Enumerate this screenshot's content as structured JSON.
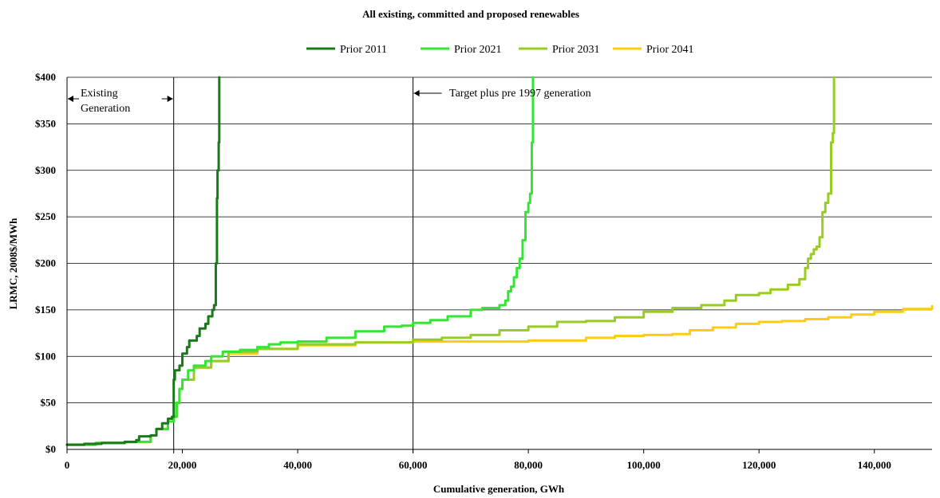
{
  "chart_data": {
    "type": "line",
    "title": "All existing, committed and proposed renewables",
    "xlabel": "Cumulative generation, GWh",
    "ylabel": "LRMC, 2008$/MWh",
    "xlim": [
      0,
      150000
    ],
    "ylim": [
      0,
      400
    ],
    "x_ticks": [
      0,
      20000,
      40000,
      60000,
      80000,
      100000,
      120000,
      140000
    ],
    "x_tick_labels": [
      "0",
      "20,000",
      "40,000",
      "60,000",
      "80,000",
      "100,000",
      "120,000",
      "140,000"
    ],
    "y_ticks": [
      0,
      50,
      100,
      150,
      200,
      250,
      300,
      350,
      400
    ],
    "y_tick_labels": [
      "$0",
      "$50",
      "$100",
      "$150",
      "$200",
      "$250",
      "$300",
      "$350",
      "$400"
    ],
    "grid": "horizontal",
    "legend_position": "top-center",
    "series": [
      {
        "name": "Prior 2011",
        "color": "#1a7a1a",
        "x": [
          0,
          3000,
          6000,
          10000,
          12000,
          12500,
          14500,
          15500,
          16500,
          17500,
          18200,
          18500,
          18700,
          19500,
          20000,
          20800,
          21200,
          22500,
          23000,
          24000,
          24500,
          25200,
          25500,
          25800,
          26000,
          26100,
          26300,
          26400
        ],
        "y": [
          5,
          6,
          7,
          8,
          10,
          14,
          15,
          22,
          28,
          33,
          35,
          75,
          85,
          90,
          103,
          110,
          117,
          122,
          130,
          135,
          143,
          150,
          155,
          200,
          270,
          300,
          330,
          400
        ]
      },
      {
        "name": "Prior 2021",
        "color": "#33e633",
        "x": [
          0,
          5000,
          10000,
          14500,
          15500,
          17500,
          18500,
          19000,
          19500,
          20000,
          21000,
          22000,
          24000,
          25000,
          27000,
          30000,
          33000,
          35000,
          37000,
          40000,
          45000,
          50000,
          55000,
          58000,
          60000,
          63000,
          66000,
          70000,
          72000,
          75000,
          76000,
          76500,
          77000,
          77500,
          78000,
          78500,
          79000,
          79500,
          80000,
          80300,
          80600,
          80800
        ],
        "y": [
          5,
          7,
          8,
          15,
          22,
          30,
          35,
          50,
          65,
          75,
          85,
          90,
          95,
          100,
          105,
          107,
          110,
          113,
          115,
          116,
          120,
          127,
          132,
          133,
          136,
          139,
          143,
          150,
          152,
          155,
          160,
          170,
          175,
          185,
          195,
          205,
          225,
          255,
          265,
          275,
          330,
          400
        ]
      },
      {
        "name": "Prior 2031",
        "color": "#99cc22",
        "x": [
          0,
          5000,
          10000,
          14500,
          15500,
          17500,
          18500,
          19000,
          19500,
          20000,
          22000,
          25000,
          28000,
          33000,
          40000,
          50000,
          60000,
          65000,
          70000,
          75000,
          80000,
          85000,
          90000,
          95000,
          100000,
          105000,
          110000,
          114000,
          116000,
          120000,
          122000,
          125000,
          127000,
          128000,
          128500,
          129000,
          129500,
          130000,
          130500,
          131000,
          131500,
          132000,
          132500,
          132800,
          133000
        ],
        "y": [
          5,
          7,
          8,
          15,
          22,
          30,
          35,
          50,
          65,
          75,
          88,
          95,
          105,
          108,
          113,
          115,
          118,
          120,
          123,
          128,
          132,
          137,
          138,
          142,
          148,
          152,
          155,
          160,
          166,
          168,
          172,
          177,
          183,
          195,
          205,
          210,
          215,
          218,
          228,
          255,
          265,
          275,
          330,
          340,
          400
        ]
      },
      {
        "name": "Prior 2041",
        "color": "#ffcc11",
        "x": [
          0,
          5000,
          10000,
          14500,
          15500,
          17500,
          18500,
          19000,
          19500,
          20000,
          22000,
          25000,
          28000,
          33000,
          40000,
          50000,
          60000,
          70000,
          80000,
          90000,
          95000,
          100000,
          105000,
          108000,
          112000,
          116000,
          120000,
          124000,
          128000,
          132000,
          136000,
          140000,
          145000,
          150000
        ],
        "y": [
          5,
          7,
          8,
          15,
          22,
          30,
          35,
          50,
          65,
          75,
          88,
          95,
          103,
          108,
          112,
          115,
          116,
          116,
          117,
          120,
          122,
          123,
          124,
          128,
          131,
          135,
          137,
          138,
          140,
          142,
          145,
          148,
          151,
          154
        ]
      }
    ],
    "annotations": [
      {
        "text_line1": "Existing",
        "text_line2": "Generation",
        "x_line": 18500
      },
      {
        "text": "Target plus pre 1997 generation",
        "x_line": 60000
      }
    ]
  }
}
